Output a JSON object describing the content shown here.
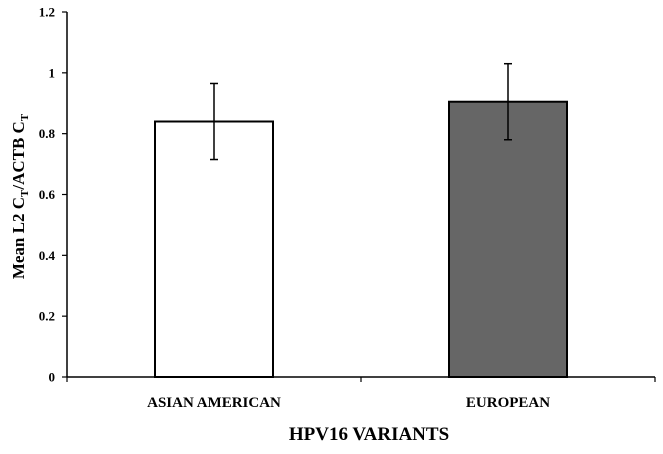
{
  "chart_data": {
    "type": "bar",
    "title": "",
    "xlabel": "HPV16 VARIANTS",
    "ylabel": {
      "parts": [
        {
          "text": "Mean L2 C",
          "sub": false
        },
        {
          "text": "T",
          "sub": true
        },
        {
          "text": "/ACTB C",
          "sub": false
        },
        {
          "text": "T",
          "sub": true
        }
      ]
    },
    "ylim": [
      0,
      1.2
    ],
    "yticks": [
      "0",
      "0.2",
      "0.4",
      "0.6",
      "0.8",
      "1",
      "1.2"
    ],
    "ytick_values": [
      0,
      0.2,
      0.4,
      0.6,
      0.8,
      1.0,
      1.2
    ],
    "categories": [
      "ASIAN AMERICAN",
      "EUROPEAN"
    ],
    "values": [
      0.84,
      0.905
    ],
    "errors": [
      0.125,
      0.125
    ],
    "bar_colors": [
      "#ffffff",
      "#666666"
    ],
    "grid": false,
    "legend": "none"
  }
}
